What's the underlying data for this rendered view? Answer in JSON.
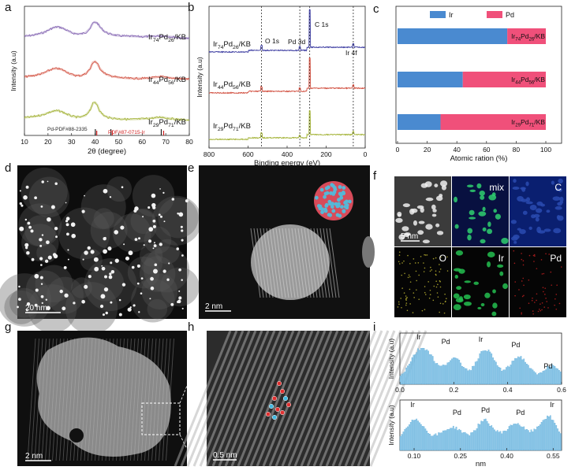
{
  "panel_letters": [
    "a",
    "b",
    "c",
    "d",
    "e",
    "f",
    "g",
    "h",
    "i"
  ],
  "chart_data": [
    {
      "panel": "a",
      "type": "line",
      "xlabel": "2θ (degree)",
      "ylabel": "Intensity (a.u)",
      "xlim": [
        10,
        80
      ],
      "xticks": [
        10,
        20,
        30,
        40,
        50,
        60,
        70,
        80
      ],
      "series": [
        {
          "name": "Ir74Pd26/KB",
          "label_main": "Ir",
          "label_sub1": "74",
          "label_mid": "Pd",
          "label_sub2": "26",
          "label_tail": "/KB",
          "color": "#8060b0",
          "x": [
            10,
            14,
            18,
            20,
            22,
            24,
            26,
            28,
            30,
            32,
            34,
            36,
            38,
            39,
            40,
            41,
            42,
            44,
            46,
            50,
            55,
            60,
            65,
            68,
            70,
            75,
            80
          ],
          "y": [
            0.4,
            0.45,
            0.55,
            0.65,
            0.75,
            0.8,
            0.75,
            0.65,
            0.55,
            0.5,
            0.5,
            0.55,
            0.75,
            0.95,
            1.0,
            0.95,
            0.8,
            0.6,
            0.5,
            0.42,
            0.4,
            0.38,
            0.4,
            0.42,
            0.4,
            0.35,
            0.3
          ]
        },
        {
          "name": "Ir44Pd56/KB",
          "label_main": "Ir",
          "label_sub1": "44",
          "label_mid": "Pd",
          "label_sub2": "56",
          "label_tail": "/KB",
          "color": "#d04a3a",
          "x": [
            10,
            14,
            18,
            20,
            22,
            24,
            26,
            28,
            30,
            32,
            34,
            36,
            38,
            39,
            40,
            41,
            42,
            44,
            46,
            50,
            55,
            60,
            65,
            68,
            70,
            75,
            80
          ],
          "y": [
            0.35,
            0.4,
            0.5,
            0.6,
            0.68,
            0.7,
            0.65,
            0.55,
            0.45,
            0.4,
            0.4,
            0.48,
            0.7,
            0.95,
            1.0,
            0.9,
            0.7,
            0.5,
            0.4,
            0.32,
            0.28,
            0.28,
            0.32,
            0.36,
            0.32,
            0.28,
            0.25
          ]
        },
        {
          "name": "Ir29Pd71/KB",
          "label_main": "Ir",
          "label_sub1": "29",
          "label_mid": "Pd",
          "label_sub2": "71",
          "label_tail": "/KB",
          "color": "#a0b030",
          "x": [
            10,
            14,
            18,
            20,
            22,
            24,
            26,
            28,
            30,
            32,
            34,
            36,
            38,
            39,
            40,
            41,
            42,
            44,
            46,
            50,
            55,
            60,
            65,
            68,
            70,
            75,
            80
          ],
          "y": [
            0.35,
            0.4,
            0.48,
            0.56,
            0.62,
            0.65,
            0.6,
            0.5,
            0.42,
            0.38,
            0.38,
            0.45,
            0.7,
            0.95,
            1.0,
            0.88,
            0.62,
            0.42,
            0.35,
            0.3,
            0.28,
            0.3,
            0.34,
            0.38,
            0.34,
            0.28,
            0.25
          ]
        }
      ],
      "references": [
        {
          "label": "Pd-PDF#88-2335",
          "color": "#222222",
          "positions": [
            40.1,
            46.7,
            68.1
          ]
        },
        {
          "label": "PDF#87-0715-Ir",
          "color": "#d02020",
          "positions": [
            40.7,
            47.3,
            69.1
          ]
        }
      ]
    },
    {
      "panel": "b",
      "type": "line",
      "xlabel": "Binding energy (eV)",
      "ylabel": "Intensity (a.u)",
      "xlim": [
        800,
        0
      ],
      "xticks": [
        800,
        600,
        400,
        200,
        0
      ],
      "peak_labels": [
        {
          "text": "O 1s",
          "x": 531
        },
        {
          "text": "Pd 3d",
          "x": 335
        },
        {
          "text": "C 1s",
          "x": 284
        },
        {
          "text": "Ir 4f",
          "x": 61
        }
      ],
      "dashed_lines": [
        531,
        335,
        284,
        61
      ],
      "series": [
        {
          "name": "Ir74Pd26/KB",
          "label_main": "Ir",
          "label_sub1": "74",
          "label_mid": "Pd",
          "label_sub2": "26",
          "label_tail": "/KB",
          "color": "#3a3aa0"
        },
        {
          "name": "Ir44Pd56/KB",
          "label_main": "Ir",
          "label_sub1": "44",
          "label_mid": "Pd",
          "label_sub2": "56",
          "label_tail": "/KB",
          "color": "#d04a3a"
        },
        {
          "name": "Ir29Pd71/KB",
          "label_main": "Ir",
          "label_sub1": "29",
          "label_mid": "Pd",
          "label_sub2": "71",
          "label_tail": "/KB",
          "color": "#a0b030"
        }
      ]
    },
    {
      "panel": "c",
      "type": "bar",
      "orientation": "horizontal-stacked",
      "xlabel": "Atomic ration (%)",
      "xlim": [
        0,
        100
      ],
      "xticks": [
        0,
        20,
        40,
        60,
        80,
        100
      ],
      "legend": [
        {
          "name": "Ir",
          "color": "#4a8ad0"
        },
        {
          "name": "Pd",
          "color": "#f0507a"
        }
      ],
      "bars": [
        {
          "label_main": "Ir",
          "label_sub1": "29",
          "label_mid": "Pd",
          "label_sub2": "71",
          "label_tail": "/KB",
          "ir": 29,
          "pd": 71
        },
        {
          "label_main": "Ir",
          "label_sub1": "44",
          "label_mid": "Pd",
          "label_sub2": "56",
          "label_tail": "/KB",
          "ir": 44,
          "pd": 56
        },
        {
          "label_main": "Ir",
          "label_sub1": "74",
          "label_mid": "Pd",
          "label_sub2": "26",
          "label_tail": "/KB",
          "ir": 74,
          "pd": 26
        }
      ]
    },
    {
      "panel": "i-top",
      "type": "bar",
      "xlabel": "",
      "ylabel": "Intensity (a.u)",
      "xlim": [
        0.0,
        0.6
      ],
      "xticks": [
        "0.0",
        "0.2",
        "0.4",
        "0.6"
      ],
      "annotations": [
        {
          "text": "Ir",
          "x": 0.07
        },
        {
          "text": "Pd",
          "x": 0.17
        },
        {
          "text": "Ir",
          "x": 0.3
        },
        {
          "text": "Pd",
          "x": 0.43
        },
        {
          "text": "Pd",
          "x": 0.55
        }
      ],
      "profile": [
        0.25,
        0.35,
        0.55,
        0.75,
        0.9,
        0.95,
        0.9,
        0.75,
        0.55,
        0.45,
        0.5,
        0.62,
        0.68,
        0.62,
        0.48,
        0.38,
        0.4,
        0.6,
        0.8,
        0.92,
        0.85,
        0.65,
        0.45,
        0.35,
        0.42,
        0.55,
        0.7,
        0.72,
        0.6,
        0.45,
        0.3,
        0.25,
        0.35,
        0.45,
        0.5,
        0.4,
        0.3
      ]
    },
    {
      "panel": "i-bottom",
      "type": "bar",
      "xlabel": "nm",
      "ylabel": "Intensity (a.u)",
      "xlim": [
        0.07,
        0.58
      ],
      "xticks": [
        "0.10",
        "0.25",
        "0.40",
        "0.55"
      ],
      "annotations": [
        {
          "text": "Ir",
          "x": 0.11
        },
        {
          "text": "Pd",
          "x": 0.25
        },
        {
          "text": "Pd",
          "x": 0.34
        },
        {
          "text": "Pd",
          "x": 0.45
        },
        {
          "text": "Ir",
          "x": 0.55
        }
      ],
      "profile": [
        0.4,
        0.55,
        0.75,
        0.85,
        0.7,
        0.5,
        0.4,
        0.42,
        0.5,
        0.58,
        0.62,
        0.55,
        0.45,
        0.42,
        0.55,
        0.75,
        0.8,
        0.65,
        0.5,
        0.48,
        0.55,
        0.7,
        0.72,
        0.6,
        0.5,
        0.52,
        0.68,
        0.85,
        0.9,
        0.7,
        0.45
      ]
    }
  ],
  "images": {
    "d": {
      "scale": "20 nm"
    },
    "e": {
      "scale": "2 nm"
    },
    "f": {
      "labels": [
        "mix",
        "C",
        "O",
        "Ir",
        "Pd"
      ],
      "scale": "5 nm"
    },
    "g": {
      "scale": "2 nm"
    },
    "h": {
      "scale": "0.5 nm"
    }
  }
}
